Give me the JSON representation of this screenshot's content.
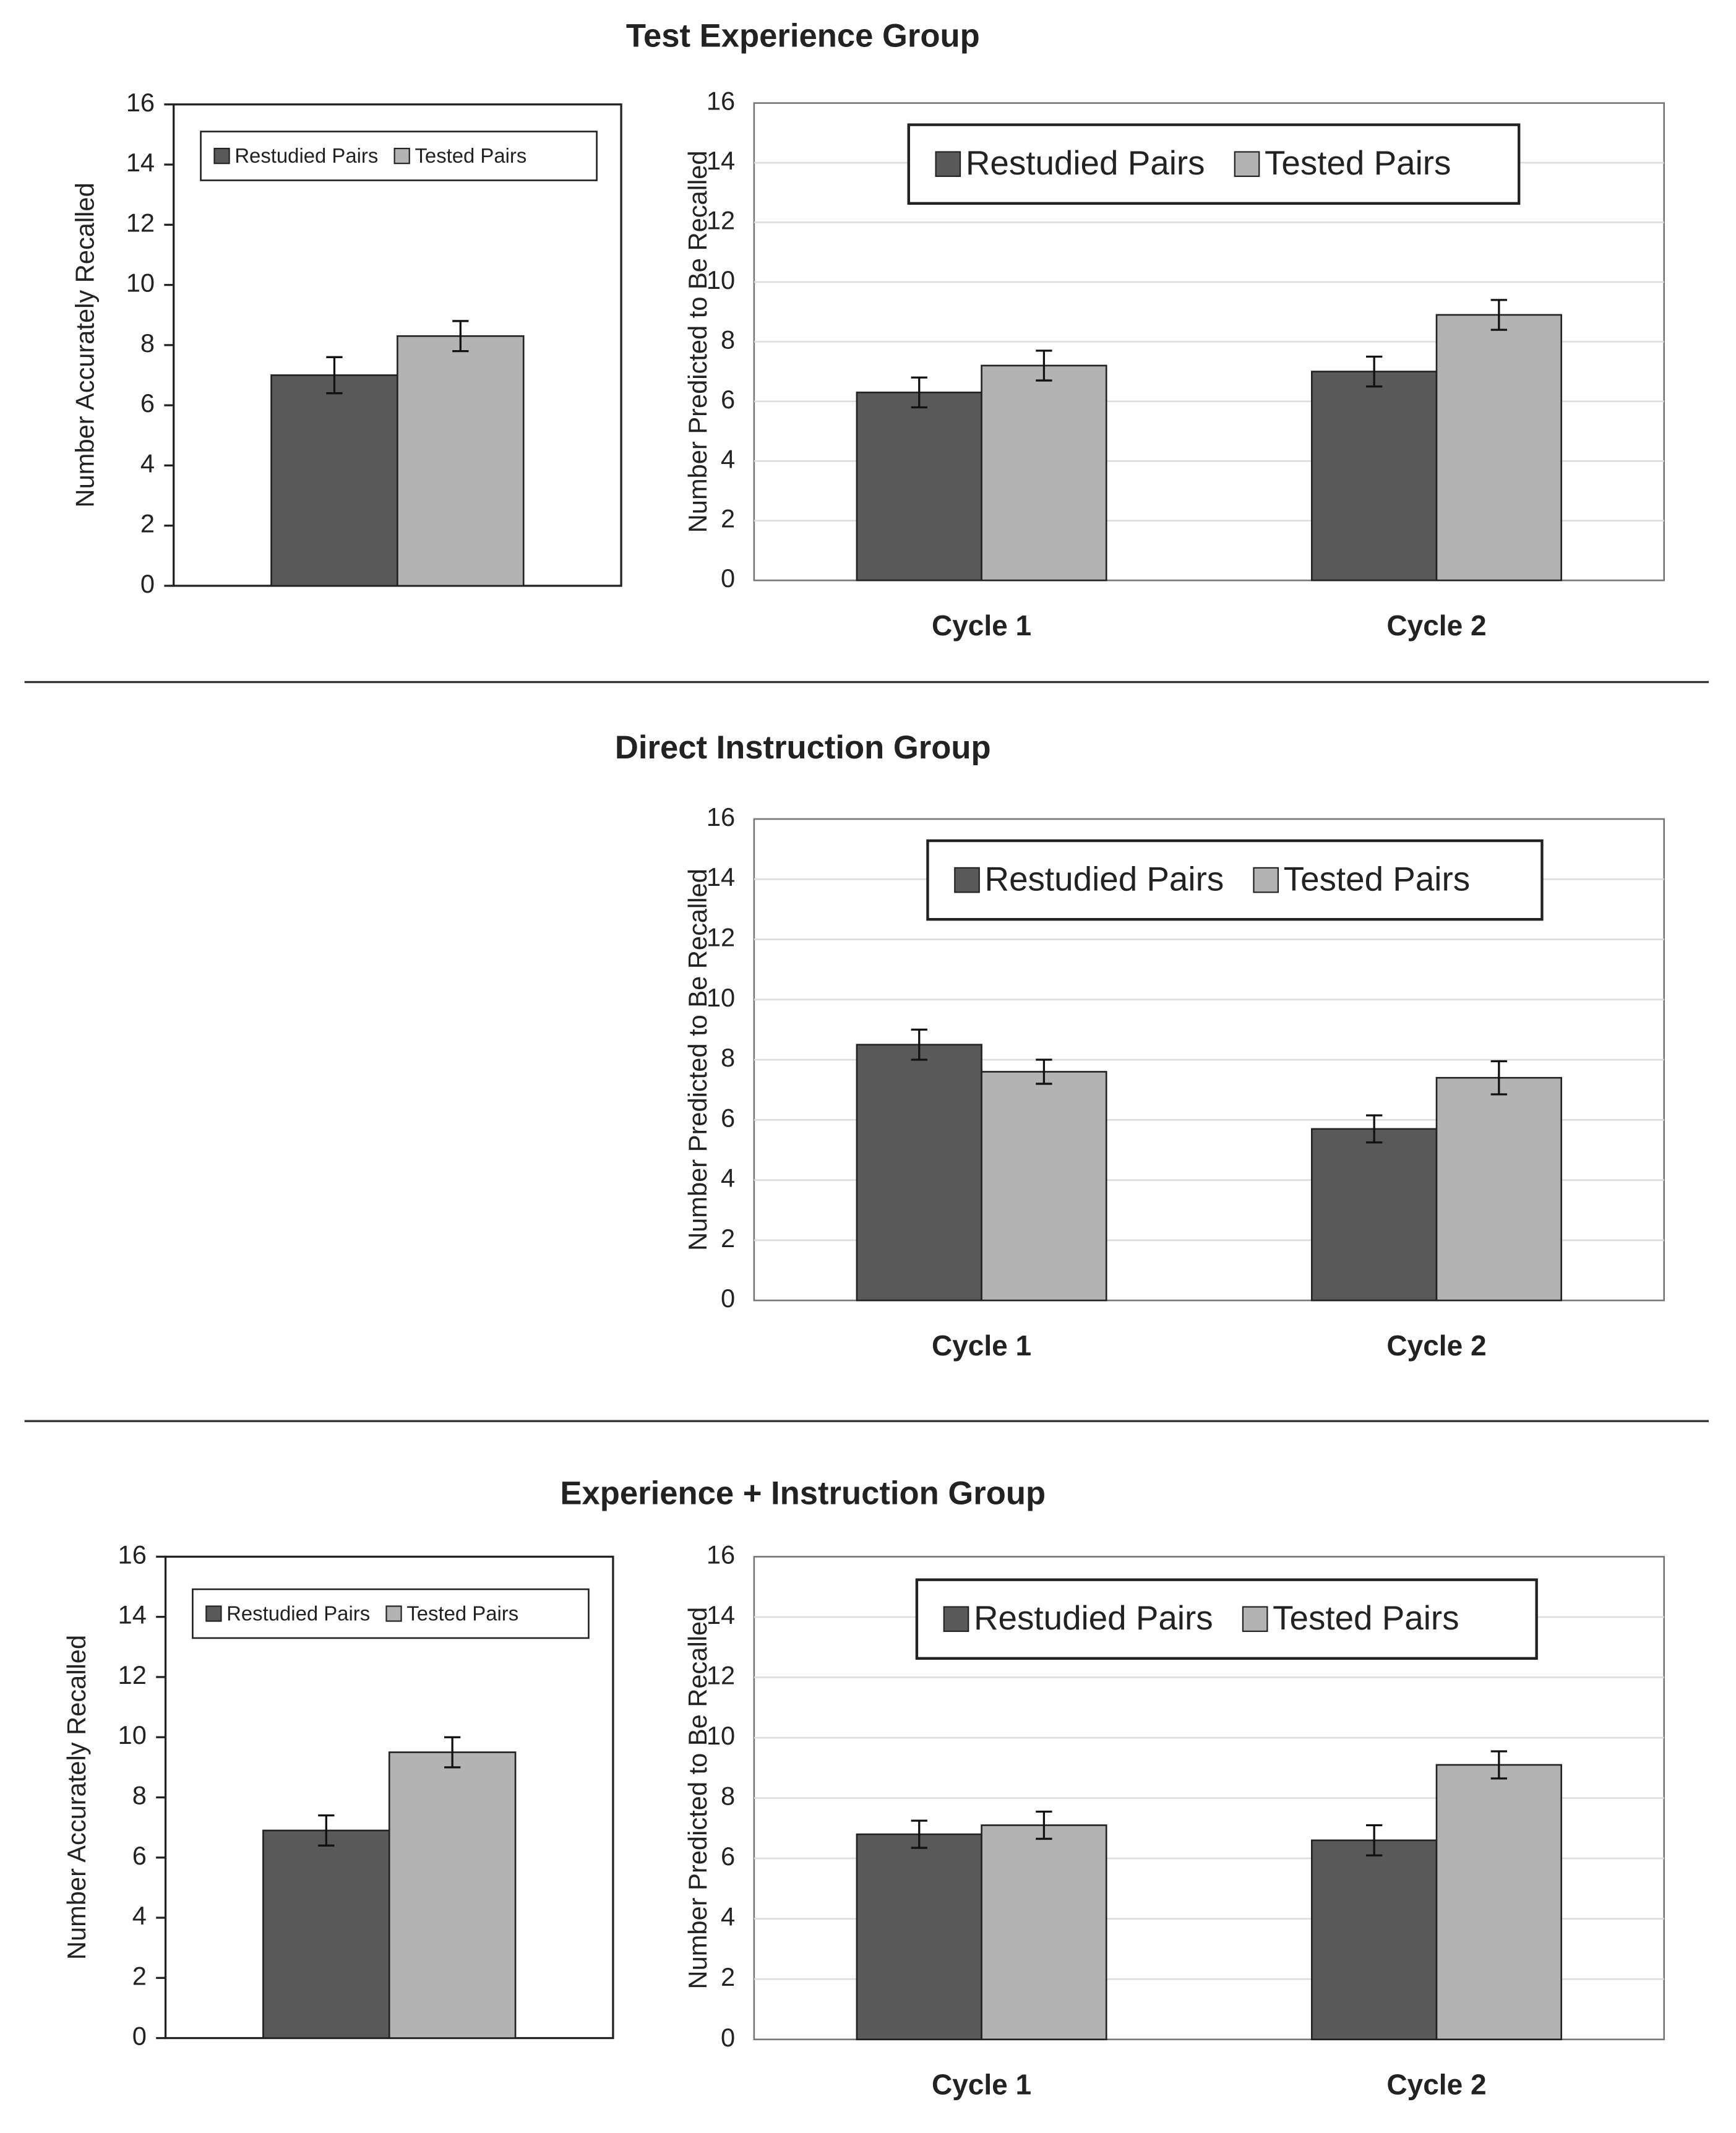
{
  "chart_data": [
    {
      "type": "bar",
      "title": "Test Experience Group",
      "categories": [
        null
      ],
      "y_label": "Number Accurately Recalled",
      "ylim": [
        0,
        16
      ],
      "yticks": [
        0,
        2,
        4,
        6,
        8,
        10,
        12,
        14,
        16
      ],
      "grid": false,
      "legend": "top",
      "series": [
        {
          "name": "Restudied Pairs",
          "color": "#595959",
          "values": [
            7.0
          ],
          "errors": [
            0.6
          ]
        },
        {
          "name": "Tested Pairs",
          "color": "#b3b3b3",
          "values": [
            8.3
          ],
          "errors": [
            0.5
          ]
        }
      ]
    },
    {
      "type": "bar",
      "categories": [
        "Cycle 1",
        "Cycle 2"
      ],
      "y_label": "Number Predicted to Be Recalled",
      "ylim": [
        0,
        16
      ],
      "yticks": [
        0,
        2,
        4,
        6,
        8,
        10,
        12,
        14,
        16
      ],
      "grid": true,
      "legend": "top",
      "series": [
        {
          "name": "Restudied Pairs",
          "color": "#595959",
          "values": [
            6.3,
            7.0
          ],
          "errors": [
            0.5,
            0.5
          ]
        },
        {
          "name": "Tested Pairs",
          "color": "#b3b3b3",
          "values": [
            7.2,
            8.9
          ],
          "errors": [
            0.5,
            0.5
          ]
        }
      ]
    },
    {
      "type": "bar",
      "title": "Direct Instruction Group",
      "categories": [
        "Cycle 1",
        "Cycle 2"
      ],
      "y_label": "Number Predicted to Be Recalled",
      "ylim": [
        0,
        16
      ],
      "yticks": [
        0,
        2,
        4,
        6,
        8,
        10,
        12,
        14,
        16
      ],
      "grid": true,
      "legend": "top",
      "series": [
        {
          "name": "Restudied Pairs",
          "color": "#595959",
          "values": [
            8.5,
            5.7
          ],
          "errors": [
            0.5,
            0.45
          ]
        },
        {
          "name": "Tested Pairs",
          "color": "#b3b3b3",
          "values": [
            7.6,
            7.4
          ],
          "errors": [
            0.4,
            0.55
          ]
        }
      ]
    },
    {
      "type": "bar",
      "title": "Experience + Instruction Group",
      "categories": [
        null
      ],
      "y_label": "Number Accurately Recalled",
      "ylim": [
        0,
        16
      ],
      "yticks": [
        0,
        2,
        4,
        6,
        8,
        10,
        12,
        14,
        16
      ],
      "grid": false,
      "legend": "top",
      "series": [
        {
          "name": "Restudied Pairs",
          "color": "#595959",
          "values": [
            6.9
          ],
          "errors": [
            0.5
          ]
        },
        {
          "name": "Tested Pairs",
          "color": "#b3b3b3",
          "values": [
            9.5
          ],
          "errors": [
            0.5
          ]
        }
      ]
    },
    {
      "type": "bar",
      "categories": [
        "Cycle 1",
        "Cycle 2"
      ],
      "y_label": "Number Predicted to Be Recalled",
      "ylim": [
        0,
        16
      ],
      "yticks": [
        0,
        2,
        4,
        6,
        8,
        10,
        12,
        14,
        16
      ],
      "grid": true,
      "legend": "top",
      "series": [
        {
          "name": "Restudied Pairs",
          "color": "#595959",
          "values": [
            6.8,
            6.6
          ],
          "errors": [
            0.45,
            0.5
          ]
        },
        {
          "name": "Tested Pairs",
          "color": "#b3b3b3",
          "values": [
            7.1,
            9.1
          ],
          "errors": [
            0.45,
            0.45
          ]
        }
      ]
    }
  ]
}
